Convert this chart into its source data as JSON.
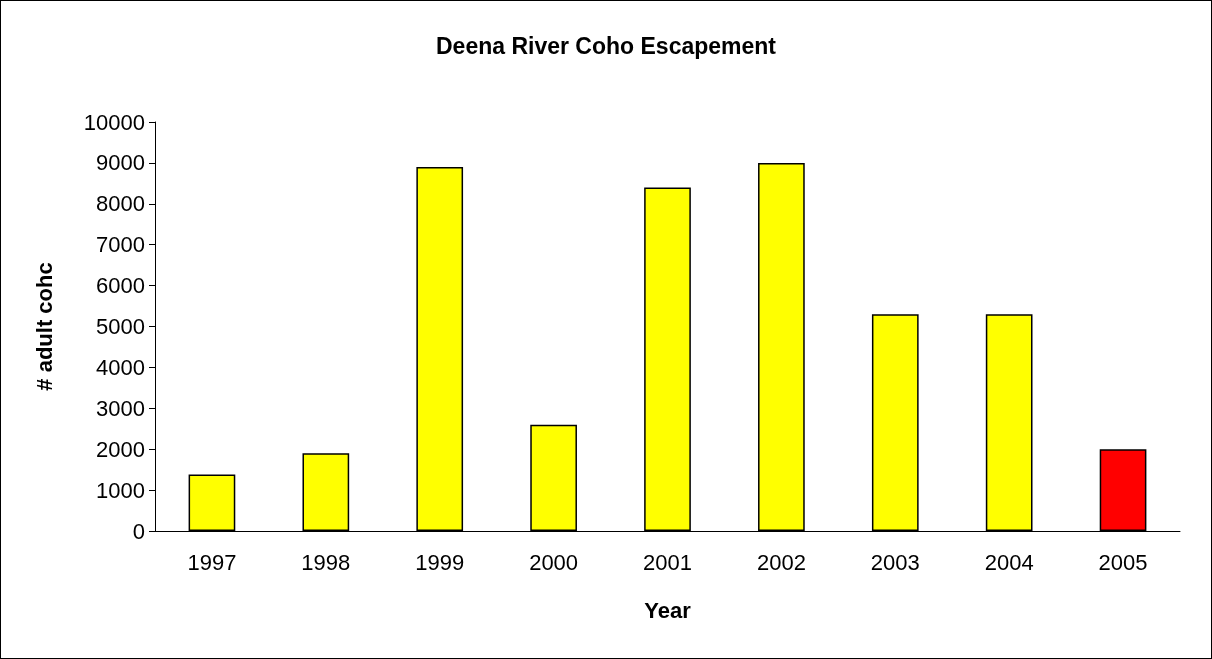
{
  "chart_data": {
    "type": "bar",
    "title": "Deena River Coho Escapement",
    "xlabel": "Year",
    "ylabel": "# adult cohc",
    "categories": [
      "1997",
      "1998",
      "1999",
      "2000",
      "2001",
      "2002",
      "2003",
      "2004",
      "2005"
    ],
    "values": [
      1380,
      1900,
      8900,
      2600,
      8400,
      9000,
      5300,
      5300,
      2000
    ],
    "colors": [
      "#ffff00",
      "#ffff00",
      "#ffff00",
      "#ffff00",
      "#ffff00",
      "#ffff00",
      "#ffff00",
      "#ffff00",
      "#ff0000"
    ],
    "ylim": [
      0,
      10000
    ],
    "yticks": [
      0,
      1000,
      2000,
      3000,
      4000,
      5000,
      6000,
      7000,
      8000,
      9000,
      10000
    ]
  }
}
